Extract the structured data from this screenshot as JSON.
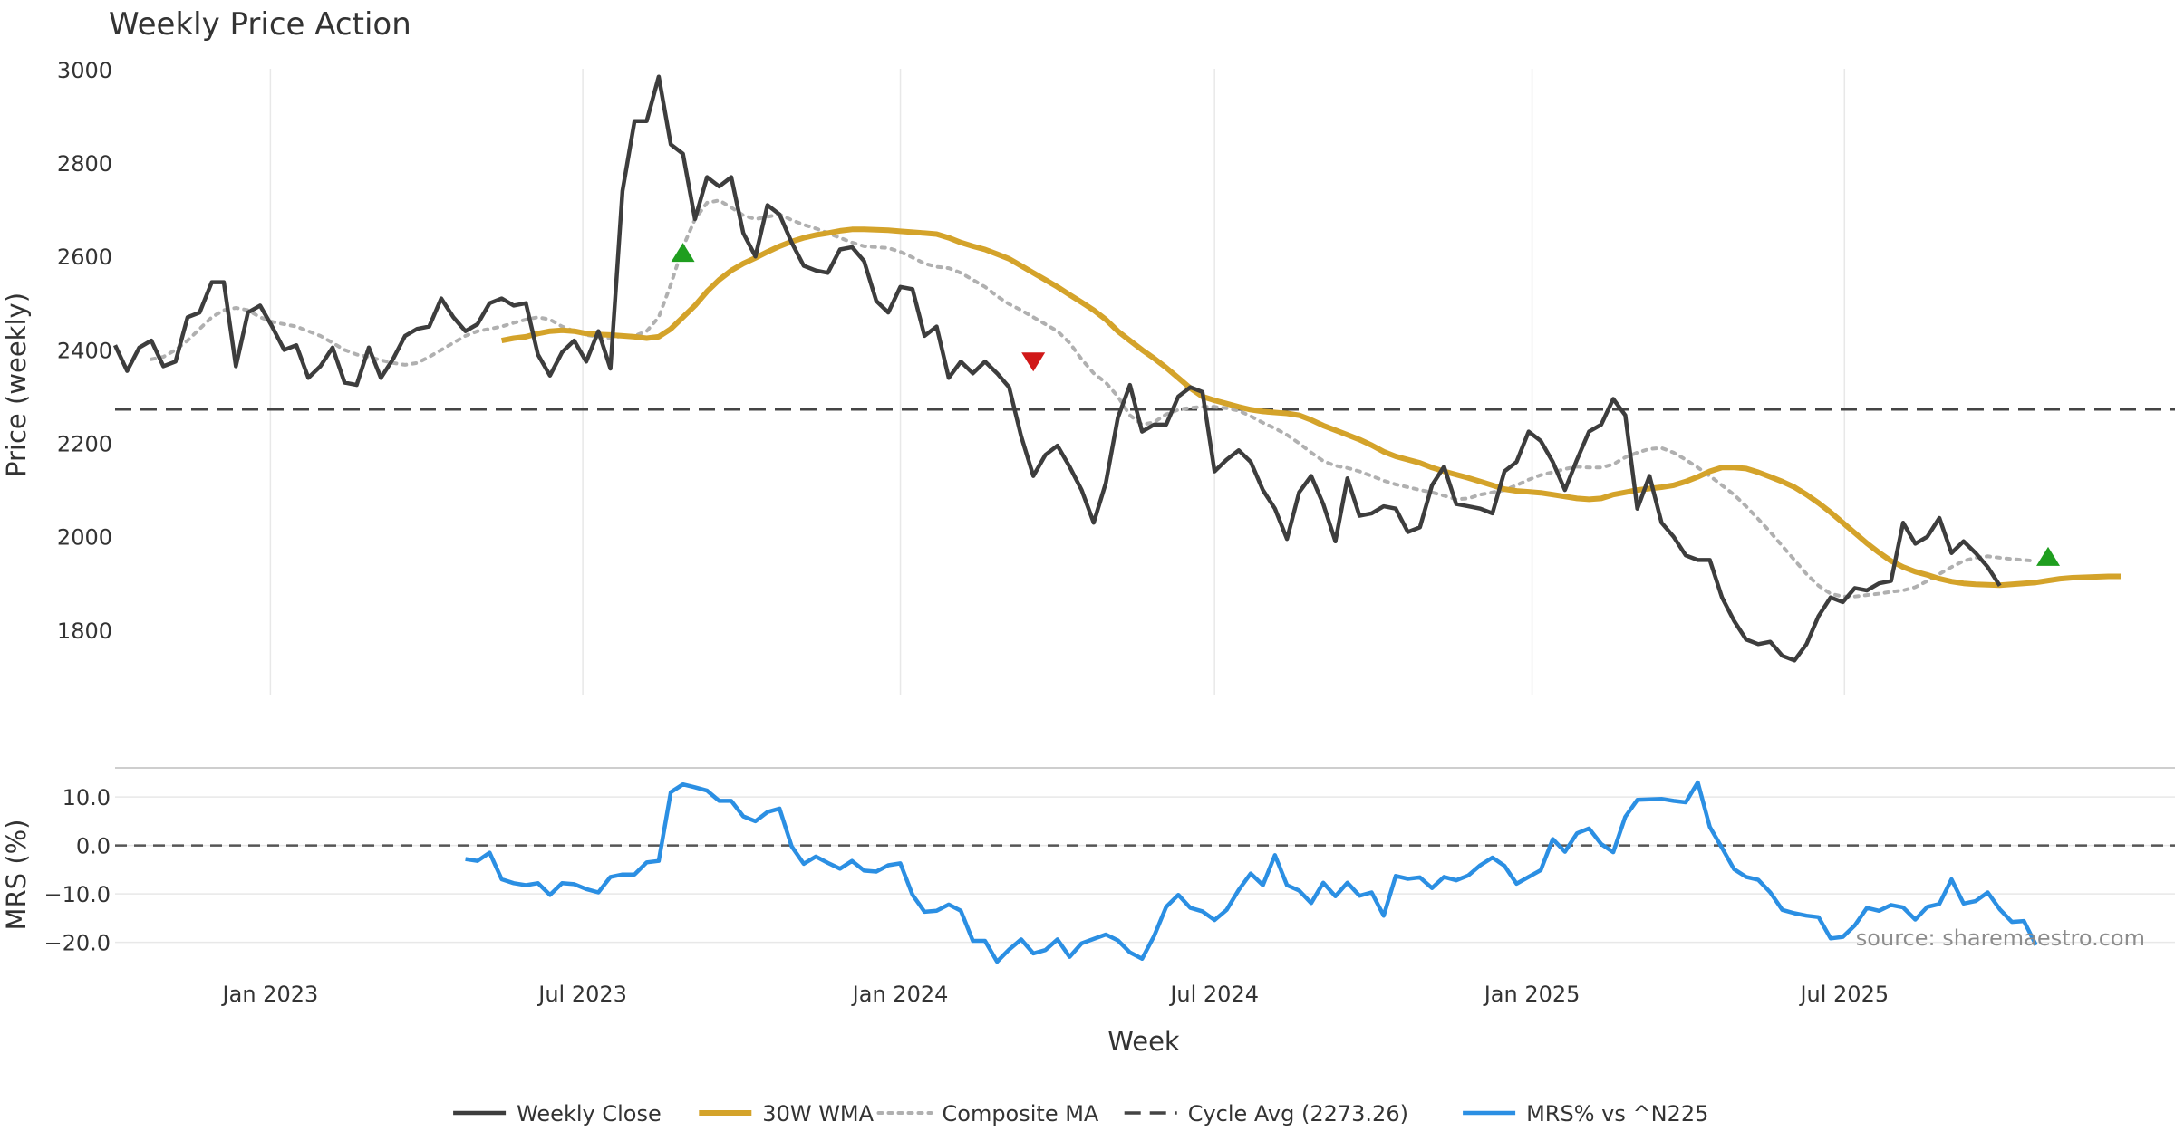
{
  "chart_data": [
    {
      "type": "line",
      "title": "Weekly Price Action",
      "ylabel": "Price (weekly)",
      "xlabel": "",
      "ylim": [
        1660,
        3060
      ],
      "yticks": [
        1800,
        2000,
        2200,
        2400,
        2600,
        2800,
        3000
      ],
      "x_range": [
        "2022-10-03",
        "2025-12-08"
      ],
      "cycle_avg": 2273.26,
      "series": [
        {
          "name": "Weekly Close",
          "color": "#3d3d3d",
          "start": "2022-10-03",
          "values": [
            2410,
            2355,
            2405,
            2420,
            2365,
            2375,
            2470,
            2480,
            2545,
            2545,
            2365,
            2480,
            2495,
            2450,
            2400,
            2410,
            2340,
            2365,
            2405,
            2330,
            2325,
            2405,
            2340,
            2380,
            2430,
            2445,
            2450,
            2510,
            2470,
            2440,
            2455,
            2500,
            2510,
            2495,
            2500,
            2390,
            2345,
            2395,
            2420,
            2375,
            2440,
            2360,
            2740,
            2890,
            2890,
            2985,
            2840,
            2820,
            2680,
            2770,
            2750,
            2770,
            2650,
            2600,
            2710,
            2690,
            2630,
            2580,
            2570,
            2565,
            2615,
            2620,
            2590,
            2505,
            2480,
            2535,
            2530,
            2430,
            2450,
            2340,
            2375,
            2350,
            2375,
            2350,
            2320,
            2215,
            2130,
            2175,
            2195,
            2150,
            2100,
            2030,
            2115,
            2255,
            2325,
            2225,
            2240,
            2240,
            2300,
            2320,
            2310,
            2140,
            2165,
            2185,
            2160,
            2100,
            2060,
            1995,
            2095,
            2130,
            2070,
            1990,
            2125,
            2045,
            2050,
            2065,
            2060,
            2010,
            2020,
            2110,
            2150,
            2070,
            2065,
            2060,
            2050,
            2140,
            2160,
            2225,
            2205,
            2160,
            2100,
            2165,
            2225,
            2240,
            2295,
            2260,
            2060,
            2130,
            2030,
            2000,
            1960,
            1950,
            1950,
            1870,
            1820,
            1780,
            1770,
            1775,
            1745,
            1735,
            1770,
            1830,
            1870,
            1860,
            1890,
            1885,
            1900,
            1905,
            2030,
            1985,
            2000,
            2040,
            1965,
            1990,
            1965,
            1935,
            1895
          ]
        },
        {
          "name": "30W WMA",
          "color": "#d4a32a",
          "start": "2023-05-15",
          "values": [
            2420,
            2425,
            2428,
            2435,
            2440,
            2442,
            2440,
            2435,
            2433,
            2432,
            2430,
            2428,
            2425,
            2428,
            2445,
            2470,
            2495,
            2525,
            2550,
            2570,
            2585,
            2597,
            2610,
            2622,
            2632,
            2640,
            2646,
            2650,
            2655,
            2658,
            2658,
            2657,
            2656,
            2654,
            2652,
            2650,
            2648,
            2640,
            2630,
            2622,
            2615,
            2605,
            2595,
            2580,
            2565,
            2550,
            2535,
            2518,
            2502,
            2485,
            2465,
            2440,
            2420,
            2400,
            2382,
            2362,
            2340,
            2318,
            2300,
            2292,
            2285,
            2278,
            2272,
            2268,
            2266,
            2264,
            2260,
            2250,
            2238,
            2228,
            2218,
            2208,
            2196,
            2182,
            2172,
            2165,
            2158,
            2148,
            2140,
            2133,
            2126,
            2118,
            2110,
            2102,
            2098,
            2096,
            2094,
            2090,
            2086,
            2082,
            2080,
            2082,
            2090,
            2095,
            2100,
            2103,
            2106,
            2110,
            2118,
            2128,
            2140,
            2148,
            2148,
            2146,
            2138,
            2128,
            2118,
            2106,
            2090,
            2072,
            2052,
            2030,
            2008,
            1986,
            1966,
            1948,
            1935,
            1925,
            1918,
            1910,
            1904,
            1900,
            1898,
            1897,
            1896,
            1898,
            1900,
            1902,
            1906,
            1910,
            1912,
            1913,
            1914,
            1915,
            1915
          ]
        },
        {
          "name": "Composite MA",
          "color": "#b0b0b0",
          "start": "2022-10-24",
          "values": [
            2380,
            2385,
            2400,
            2420,
            2445,
            2470,
            2485,
            2490,
            2485,
            2470,
            2460,
            2455,
            2450,
            2440,
            2430,
            2415,
            2400,
            2390,
            2385,
            2378,
            2372,
            2368,
            2372,
            2385,
            2400,
            2415,
            2430,
            2440,
            2445,
            2450,
            2458,
            2465,
            2470,
            2465,
            2450,
            2440,
            2432,
            2428,
            2425,
            2430,
            2430,
            2440,
            2470,
            2540,
            2620,
            2680,
            2715,
            2720,
            2705,
            2688,
            2680,
            2685,
            2690,
            2678,
            2668,
            2660,
            2650,
            2640,
            2630,
            2622,
            2620,
            2618,
            2610,
            2598,
            2585,
            2578,
            2575,
            2565,
            2550,
            2535,
            2515,
            2498,
            2485,
            2470,
            2455,
            2440,
            2415,
            2380,
            2350,
            2330,
            2300,
            2260,
            2240,
            2245,
            2262,
            2272,
            2276,
            2278,
            2278,
            2275,
            2270,
            2258,
            2244,
            2232,
            2218,
            2200,
            2180,
            2162,
            2152,
            2147,
            2140,
            2130,
            2120,
            2112,
            2106,
            2100,
            2095,
            2088,
            2080,
            2082,
            2090,
            2095,
            2100,
            2110,
            2122,
            2132,
            2138,
            2145,
            2150,
            2148,
            2148,
            2155,
            2170,
            2180,
            2188,
            2190,
            2180,
            2165,
            2148,
            2130,
            2110,
            2090,
            2065,
            2038,
            2010,
            1980,
            1950,
            1920,
            1895,
            1878,
            1872,
            1872,
            1875,
            1878,
            1882,
            1885,
            1892,
            1905,
            1920,
            1935,
            1948,
            1955,
            1958,
            1955,
            1952,
            1950,
            1948
          ]
        }
      ],
      "signals": [
        {
          "date": "2023-08-28",
          "value": 2608,
          "type": "buy",
          "color": "#1f9e1f"
        },
        {
          "date": "2024-03-18",
          "value": 2375,
          "type": "sell",
          "color": "#d01818"
        },
        {
          "date": "2025-10-27",
          "value": 1957,
          "type": "buy",
          "color": "#1f9e1f"
        }
      ]
    },
    {
      "type": "line",
      "ylabel": "MRS (%)",
      "xlabel": "Week",
      "ylim": [
        -24,
        16
      ],
      "yticks": [
        -20,
        -10,
        0,
        10
      ],
      "ytick_labels": [
        "−20.0",
        "−10.0",
        "0.0",
        "10.0"
      ],
      "xticks": [
        {
          "date": "2023-01-01",
          "label": "Jan 2023"
        },
        {
          "date": "2023-07-01",
          "label": "Jul 2023"
        },
        {
          "date": "2024-01-01",
          "label": "Jan 2024"
        },
        {
          "date": "2024-07-01",
          "label": "Jul 2024"
        },
        {
          "date": "2025-01-01",
          "label": "Jan 2025"
        },
        {
          "date": "2025-07-01",
          "label": "Jul 2025"
        }
      ],
      "series": [
        {
          "name": "MRS% vs ^N225",
          "color": "#2b8fe3",
          "start": "2023-04-24",
          "values": [
            -2.8,
            -3.2,
            -1.5,
            -7,
            -7.8,
            -8.2,
            -7.8,
            -10.2,
            -7.8,
            -8,
            -9,
            -9.7,
            -6.5,
            -6,
            -6,
            -3.5,
            -3.2,
            11,
            12.6,
            12,
            11.3,
            9.2,
            9.2,
            6,
            5,
            6.9,
            7.6,
            -0.2,
            -3.8,
            -2.3,
            -3.6,
            -4.8,
            -3.2,
            -5.2,
            -5.4,
            -4.1,
            -3.7,
            -10.2,
            -13.7,
            -13.5,
            -12.2,
            -13.5,
            -19.7,
            -19.7,
            -24,
            -21.5,
            -19.4,
            -22.3,
            -21.6,
            -19.4,
            -23,
            -20.2,
            -19.3,
            -18.4,
            -19.6,
            -22.1,
            -23.4,
            -18.7,
            -12.7,
            -10.2,
            -12.9,
            -13.6,
            -15.4,
            -13.3,
            -9.2,
            -5.8,
            -8.2,
            -2,
            -8.2,
            -9.3,
            -11.9,
            -7.7,
            -10.5,
            -7.7,
            -10.4,
            -9.7,
            -14.5,
            -6.3,
            -6.9,
            -6.6,
            -8.8,
            -6.5,
            -7.2,
            -6.2,
            -4.1,
            -2.5,
            -4.2,
            -7.9,
            -6.5,
            -5.1,
            1.3,
            -1.3,
            2.5,
            3.5,
            0.3,
            -1.4,
            5.9,
            9.4,
            9.5,
            9.6,
            9.2,
            8.9,
            13,
            3.8,
            -0.5,
            -4.9,
            -6.5,
            -7.1,
            -9.7,
            -13.3,
            -14,
            -14.5,
            -14.8,
            -19.2,
            -18.9,
            -16.5,
            -12.9,
            -13.5,
            -12.3,
            -12.8,
            -15.3,
            -12.7,
            -12.1,
            -7,
            -12,
            -11.5,
            -9.7,
            -13.2,
            -15.8,
            -15.6,
            -20.6
          ]
        }
      ],
      "zero_line": 0
    }
  ],
  "legend": {
    "items": [
      {
        "label": "Weekly Close",
        "style": "solid",
        "color": "#3d3d3d"
      },
      {
        "label": "30W WMA",
        "style": "solid-thick",
        "color": "#d4a32a"
      },
      {
        "label": "Composite MA",
        "style": "dotted",
        "color": "#b0b0b0"
      },
      {
        "label": "Cycle Avg (2273.26)",
        "style": "dashed",
        "color": "#444444"
      },
      {
        "label": "MRS% vs ^N225",
        "style": "solid",
        "color": "#2b8fe3"
      }
    ]
  },
  "source_note": "source: sharemaestro.com"
}
